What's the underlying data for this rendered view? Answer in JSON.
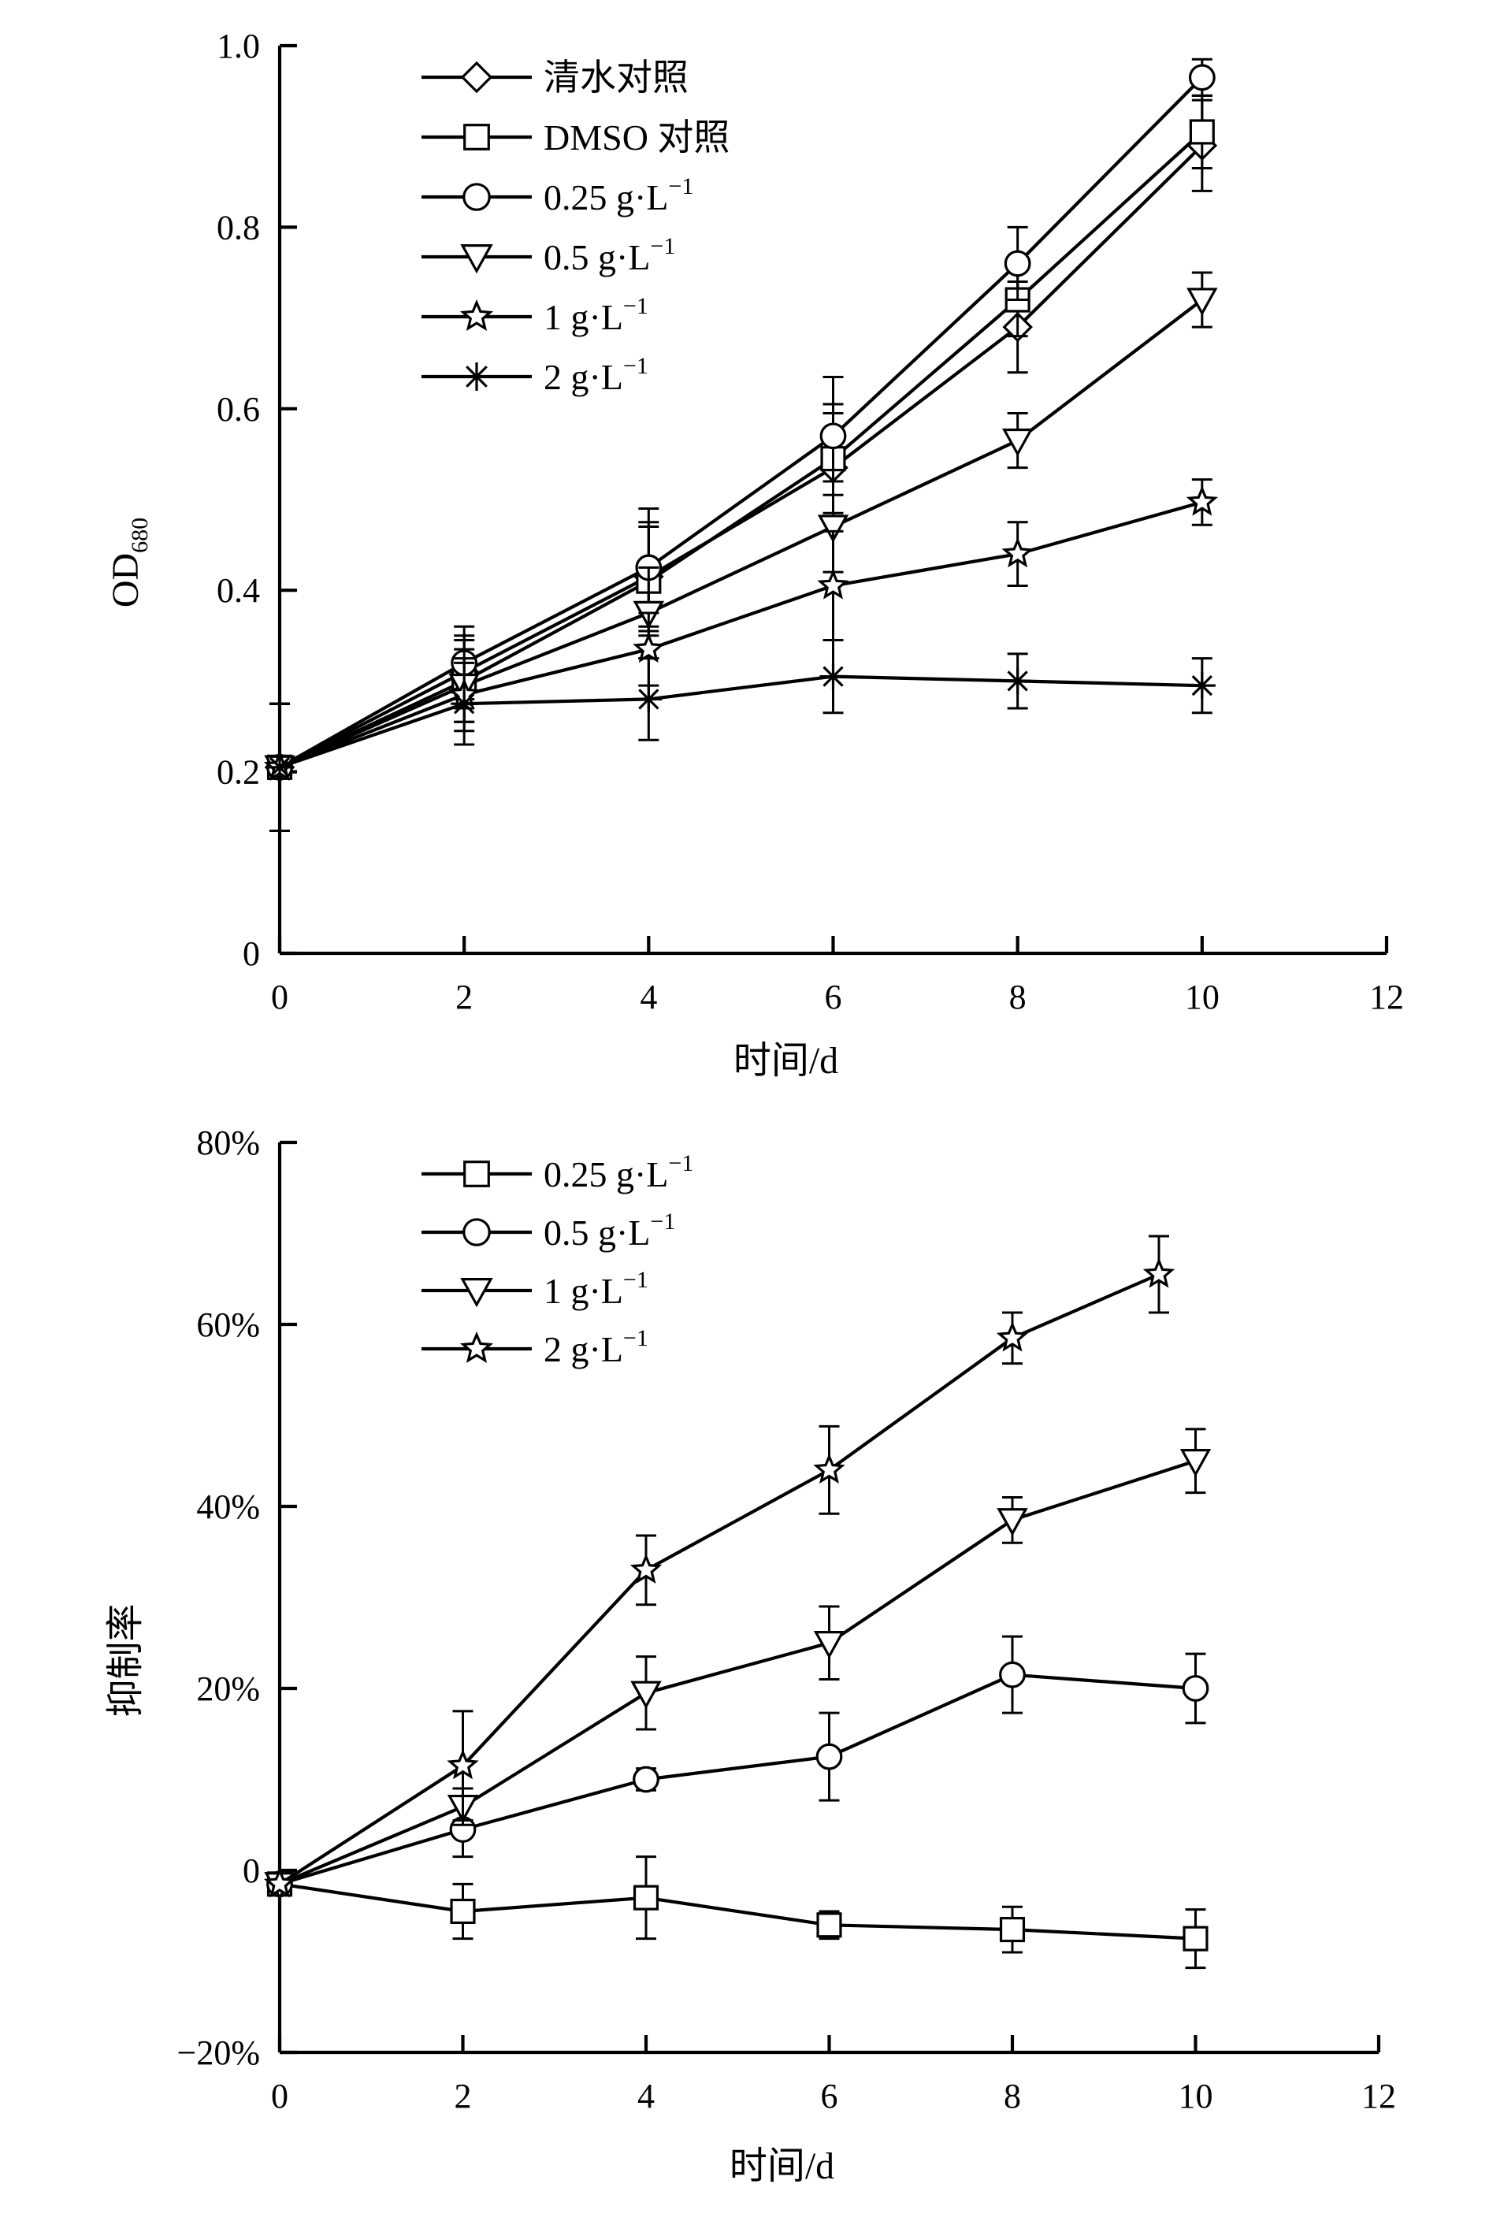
{
  "chart_data": [
    {
      "type": "line",
      "title": "",
      "xlabel": "时间/d",
      "ylabel": "OD",
      "ylabel_subscript": "680",
      "xlim": [
        0,
        12
      ],
      "ylim": [
        0,
        1.0
      ],
      "xticks": [
        0,
        2,
        4,
        6,
        8,
        10,
        12
      ],
      "xtick_labels": [
        "0",
        "2",
        "4",
        "6",
        "8",
        "10",
        "12"
      ],
      "yticks": [
        0,
        0.2,
        0.4,
        0.6,
        0.8,
        1.0
      ],
      "ytick_labels": [
        "0",
        "0.2",
        "0.4",
        "0.6",
        "0.8",
        "1.0"
      ],
      "legend_position": "top-left",
      "grid": false,
      "x": [
        0,
        2,
        4,
        6,
        8,
        10
      ],
      "series": [
        {
          "name": "清水对照",
          "unit": "",
          "marker": "diamond",
          "values": [
            0.205,
            0.31,
            0.415,
            0.535,
            0.69,
            0.89
          ],
          "errors": [
            0.07,
            0.04,
            0.06,
            0.06,
            0.05,
            0.05
          ]
        },
        {
          "name": "DMSO 对照",
          "unit": "",
          "marker": "square",
          "values": [
            0.205,
            0.3,
            0.41,
            0.545,
            0.72,
            0.905
          ],
          "errors": [
            0.07,
            0.045,
            0.06,
            0.06,
            0.04,
            0.04
          ]
        },
        {
          "name": "0.25 g·L",
          "unit": "−1",
          "marker": "circle",
          "values": [
            0.205,
            0.32,
            0.425,
            0.57,
            0.76,
            0.965
          ],
          "errors": [
            0.07,
            0.04,
            0.065,
            0.065,
            0.04,
            0.02
          ]
        },
        {
          "name": "0.5 g·L",
          "unit": "−1",
          "marker": "triangle-down",
          "values": [
            0.205,
            0.295,
            0.375,
            0.47,
            0.565,
            0.72
          ],
          "errors": [
            0.07,
            0.04,
            0.05,
            0.05,
            0.03,
            0.03
          ]
        },
        {
          "name": "1 g·L",
          "unit": "−1",
          "marker": "star",
          "values": [
            0.205,
            0.285,
            0.335,
            0.405,
            0.44,
            0.497
          ],
          "errors": [
            0.07,
            0.04,
            0.04,
            0.06,
            0.035,
            0.025
          ]
        },
        {
          "name": "2 g·L",
          "unit": "−1",
          "marker": "asterisk",
          "values": [
            0.205,
            0.275,
            0.28,
            0.305,
            0.3,
            0.295
          ],
          "errors": [
            0.07,
            0.045,
            0.045,
            0.04,
            0.03,
            0.03
          ]
        }
      ]
    },
    {
      "type": "line",
      "title": "",
      "xlabel": "时间/d",
      "ylabel": "抑制率",
      "xlim": [
        0,
        12
      ],
      "ylim": [
        -20,
        80
      ],
      "xticks": [
        0,
        2,
        4,
        6,
        8,
        10,
        12
      ],
      "xtick_labels": [
        "0",
        "2",
        "4",
        "6",
        "8",
        "10",
        "12"
      ],
      "yticks": [
        -20,
        0,
        20,
        40,
        60,
        80
      ],
      "ytick_labels": [
        "−20%",
        "0",
        "20%",
        "40%",
        "60%",
        "80%"
      ],
      "legend_position": "top-left",
      "grid": false,
      "series": [
        {
          "name": "0.25 g·L",
          "unit": "−1",
          "marker": "square",
          "x": [
            0,
            2,
            4,
            6,
            8,
            10
          ],
          "values": [
            -1.5,
            -4.5,
            -3,
            -6,
            -6.5,
            -7.5
          ],
          "errors": [
            0,
            3,
            4.5,
            1.5,
            2.5,
            3.2
          ]
        },
        {
          "name": "0.5 g·L",
          "unit": "−1",
          "marker": "circle",
          "x": [
            0,
            2,
            4,
            6,
            8,
            10
          ],
          "values": [
            -1.5,
            4.5,
            10,
            12.5,
            21.5,
            20
          ],
          "errors": [
            0,
            3,
            1.2,
            4.8,
            4.2,
            3.8
          ]
        },
        {
          "name": "1 g·L",
          "unit": "−1",
          "marker": "triangle-down",
          "x": [
            0,
            2,
            4,
            6,
            8,
            10
          ],
          "values": [
            -1.5,
            7,
            19.5,
            25,
            38.5,
            45
          ],
          "errors": [
            0,
            2,
            4,
            4,
            2.5,
            3.5
          ]
        },
        {
          "name": "2 g·L",
          "unit": "−1",
          "marker": "star",
          "x": [
            0,
            2,
            4,
            6,
            8,
            9.6
          ],
          "values": [
            -1.5,
            11.5,
            33,
            44,
            58.5,
            65.5
          ],
          "errors": [
            0,
            6,
            3.8,
            4.8,
            2.8,
            4.2
          ]
        }
      ]
    }
  ]
}
